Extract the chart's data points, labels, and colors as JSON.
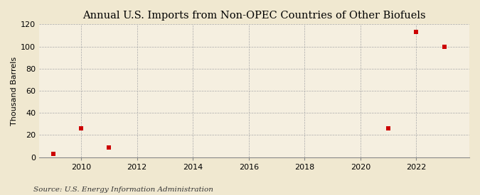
{
  "title": "Annual U.S. Imports from Non-OPEC Countries of Other Biofuels",
  "ylabel": "Thousand Barrels",
  "source": "Source: U.S. Energy Information Administration",
  "background_color": "#f0e8d0",
  "plot_background_color": "#f5efe0",
  "x_values": [
    2009,
    2010,
    2011,
    2021,
    2022,
    2023
  ],
  "y_values": [
    3,
    26,
    9,
    26,
    113,
    100
  ],
  "marker_color": "#cc0000",
  "marker_size": 4,
  "xlim": [
    2008.5,
    2023.9
  ],
  "ylim": [
    0,
    120
  ],
  "yticks": [
    0,
    20,
    40,
    60,
    80,
    100,
    120
  ],
  "xticks": [
    2010,
    2012,
    2014,
    2016,
    2018,
    2020,
    2022
  ],
  "grid_color": "#aaaaaa",
  "title_fontsize": 10.5,
  "axis_fontsize": 8,
  "source_fontsize": 7.5
}
